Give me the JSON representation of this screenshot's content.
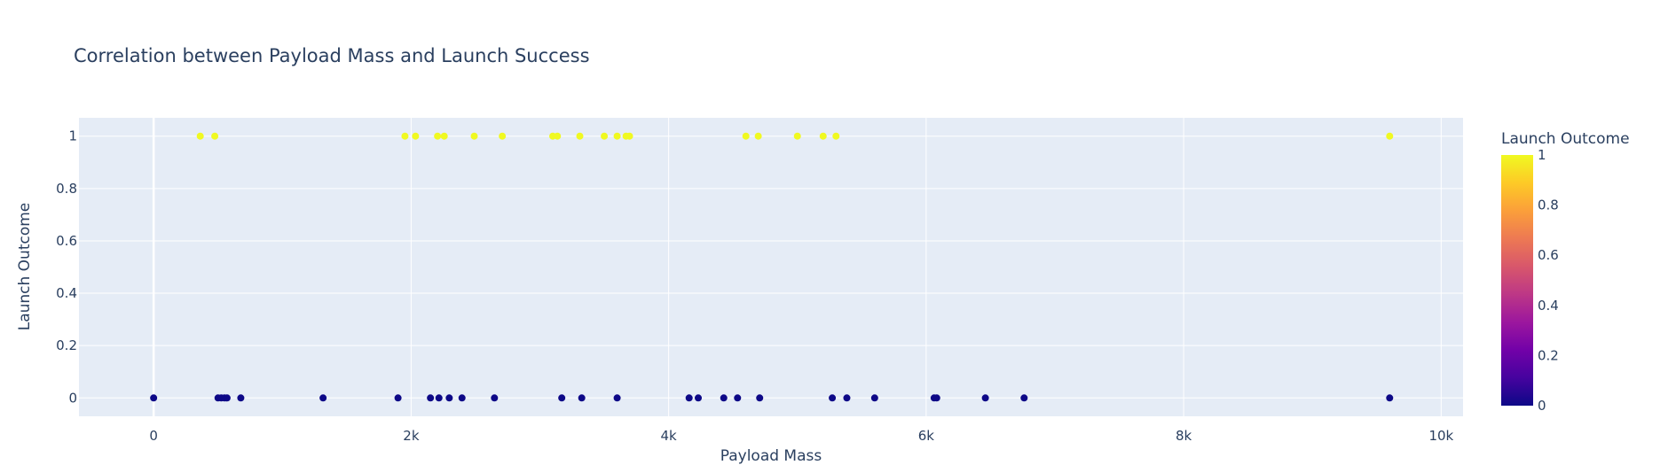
{
  "chart_data": {
    "type": "scatter",
    "title": "Correlation between Payload Mass and Launch Success",
    "xlabel": "Payload Mass",
    "ylabel": "Launch Outcome",
    "xlim": [
      -580,
      10170
    ],
    "ylim": [
      -0.07,
      1.07
    ],
    "x_ticks": [
      0,
      2000,
      4000,
      6000,
      8000,
      10000
    ],
    "x_tick_labels": [
      "0",
      "2k",
      "4k",
      "6k",
      "8k",
      "10k"
    ],
    "y_ticks": [
      0,
      0.2,
      0.4,
      0.6,
      0.8,
      1
    ],
    "y_tick_labels": [
      "0",
      "0.2",
      "0.4",
      "0.6",
      "0.8",
      "1"
    ],
    "grid": true,
    "colorbar": {
      "title": "Launch Outcome",
      "colorscale": "Plasma",
      "range": [
        0,
        1
      ],
      "ticks": [
        0,
        0.2,
        0.4,
        0.6,
        0.8,
        1
      ],
      "tick_labels": [
        "0",
        "0.2",
        "0.4",
        "0.6",
        "0.8",
        "1"
      ],
      "colors": [
        "#0d0887",
        "#46039f",
        "#7201a8",
        "#9c179e",
        "#bd3786",
        "#d8576b",
        "#ed7953",
        "#fb9f3a",
        "#fdca26",
        "#f0f921"
      ]
    },
    "points": [
      {
        "x": 0,
        "y": 0
      },
      {
        "x": 500,
        "y": 0
      },
      {
        "x": 525,
        "y": 0
      },
      {
        "x": 550,
        "y": 0
      },
      {
        "x": 570,
        "y": 0
      },
      {
        "x": 677,
        "y": 0
      },
      {
        "x": 1316,
        "y": 0
      },
      {
        "x": 1898,
        "y": 0
      },
      {
        "x": 2150,
        "y": 0
      },
      {
        "x": 2216,
        "y": 0
      },
      {
        "x": 2296,
        "y": 0
      },
      {
        "x": 2395,
        "y": 0
      },
      {
        "x": 2647,
        "y": 0
      },
      {
        "x": 3170,
        "y": 0
      },
      {
        "x": 3325,
        "y": 0
      },
      {
        "x": 3600,
        "y": 0
      },
      {
        "x": 4159,
        "y": 0
      },
      {
        "x": 4230,
        "y": 0
      },
      {
        "x": 4428,
        "y": 0
      },
      {
        "x": 4535,
        "y": 0
      },
      {
        "x": 4707,
        "y": 0
      },
      {
        "x": 5271,
        "y": 0
      },
      {
        "x": 5384,
        "y": 0
      },
      {
        "x": 5600,
        "y": 0
      },
      {
        "x": 6062,
        "y": 0
      },
      {
        "x": 6082,
        "y": 0
      },
      {
        "x": 6460,
        "y": 0
      },
      {
        "x": 6761,
        "y": 0
      },
      {
        "x": 9600,
        "y": 0
      },
      {
        "x": 362,
        "y": 1
      },
      {
        "x": 475,
        "y": 1
      },
      {
        "x": 1952,
        "y": 1
      },
      {
        "x": 2034,
        "y": 1
      },
      {
        "x": 2205,
        "y": 1
      },
      {
        "x": 2257,
        "y": 1
      },
      {
        "x": 2490,
        "y": 1
      },
      {
        "x": 2708,
        "y": 1
      },
      {
        "x": 3100,
        "y": 1
      },
      {
        "x": 3136,
        "y": 1
      },
      {
        "x": 3310,
        "y": 1
      },
      {
        "x": 3500,
        "y": 1
      },
      {
        "x": 3600,
        "y": 1
      },
      {
        "x": 3669,
        "y": 1
      },
      {
        "x": 3696,
        "y": 1
      },
      {
        "x": 4600,
        "y": 1
      },
      {
        "x": 4696,
        "y": 1
      },
      {
        "x": 5000,
        "y": 1
      },
      {
        "x": 5200,
        "y": 1
      },
      {
        "x": 5300,
        "y": 1
      },
      {
        "x": 9600,
        "y": 1
      }
    ]
  }
}
